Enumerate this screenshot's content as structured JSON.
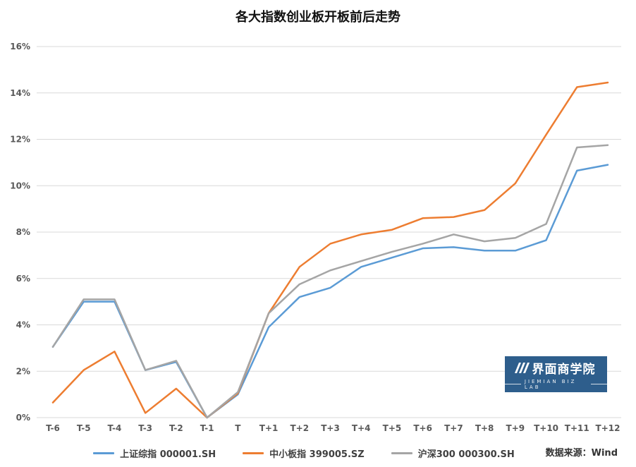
{
  "title": "各大指数创业板开板前后走势",
  "source": "数据来源：Wind",
  "logo": {
    "name": "界面商学院",
    "sub": "JIEMIAN BIZ LAB",
    "bg_color": "#2E5E8C"
  },
  "colors": {
    "series_blue": "#5B9BD5",
    "series_orange": "#ED7D31",
    "series_gray": "#A5A5A5",
    "gridline": "#D9D9D9",
    "tick_text": "#595959"
  },
  "chart_data": {
    "type": "line",
    "title": "各大指数创业板开板前后走势",
    "xlabel": "",
    "ylabel": "",
    "ylim": [
      0,
      16
    ],
    "ytick_step": 2,
    "ytick_format": "percent",
    "grid": true,
    "legend_position": "bottom",
    "categories": [
      "T-6",
      "T-5",
      "T-4",
      "T-3",
      "T-2",
      "T-1",
      "T",
      "T+1",
      "T+2",
      "T+3",
      "T+4",
      "T+5",
      "T+6",
      "T+7",
      "T+8",
      "T+9",
      "T+10",
      "T+11",
      "T+12"
    ],
    "series": [
      {
        "name": "上证综指  000001.SH",
        "color": "#5B9BD5",
        "values": [
          3.05,
          5.0,
          5.0,
          2.05,
          2.4,
          0.0,
          1.0,
          3.9,
          5.2,
          5.6,
          6.5,
          6.9,
          7.3,
          7.35,
          7.2,
          7.2,
          7.65,
          10.65,
          10.9
        ]
      },
      {
        "name": "中小板指  399005.SZ",
        "color": "#ED7D31",
        "values": [
          0.65,
          2.05,
          2.85,
          0.2,
          1.25,
          0.0,
          1.05,
          4.5,
          6.5,
          7.5,
          7.9,
          8.1,
          8.6,
          8.65,
          8.95,
          10.1,
          12.2,
          14.25,
          14.45
        ]
      },
      {
        "name": "沪深300  000300.SH",
        "color": "#A5A5A5",
        "values": [
          3.05,
          5.1,
          5.1,
          2.05,
          2.45,
          0.0,
          1.1,
          4.5,
          5.75,
          6.35,
          6.75,
          7.15,
          7.5,
          7.9,
          7.6,
          7.75,
          8.35,
          11.65,
          11.75
        ]
      }
    ]
  }
}
